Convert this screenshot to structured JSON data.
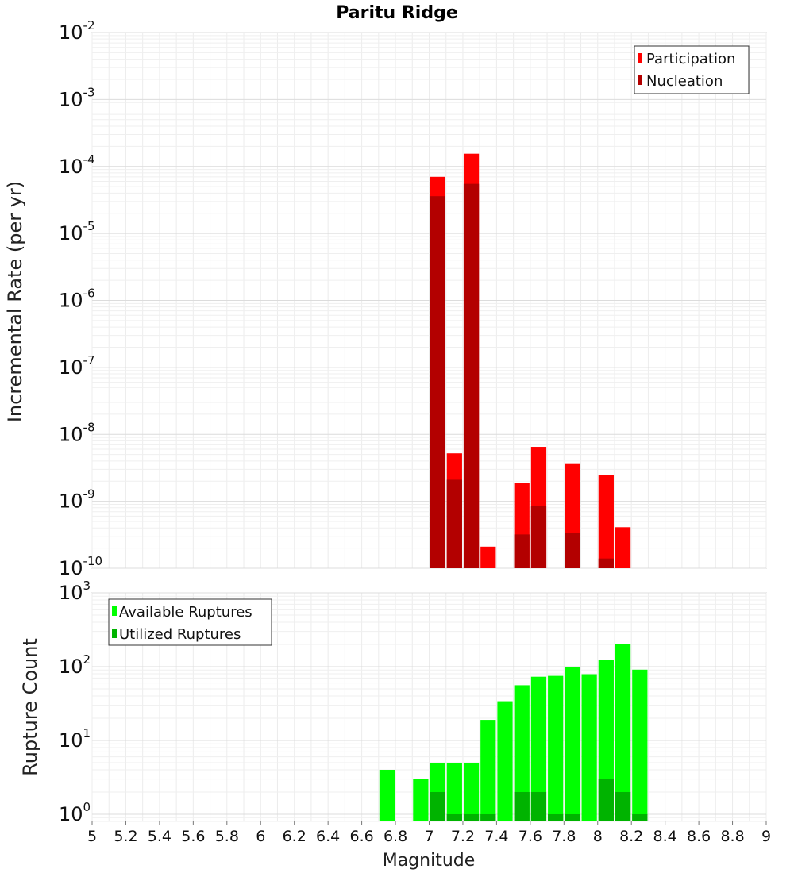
{
  "chart_data": [
    {
      "type": "bar",
      "title": "Paritu Ridge",
      "xlabel": "",
      "ylabel": "Incremental Rate (per yr)",
      "yscale": "log",
      "xlim": [
        5,
        9
      ],
      "ylim": [
        1e-10,
        0.01
      ],
      "yticks": [
        "10^-10",
        "10^-9",
        "10^-8",
        "10^-7",
        "10^-6",
        "10^-5",
        "10^-4",
        "10^-3",
        "10^-2"
      ],
      "grid": true,
      "legend_position": "top-right",
      "colors": {
        "Participation": "#ff0000",
        "Nucleation": "#b30000"
      },
      "series": [
        {
          "name": "Participation",
          "x": [
            7.05,
            7.15,
            7.25,
            7.35,
            7.55,
            7.65,
            7.85,
            8.05,
            8.15
          ],
          "values": [
            7e-05,
            5.2e-09,
            0.000155,
            2.1e-10,
            1.9e-09,
            6.5e-09,
            3.6e-09,
            2.5e-09,
            4.1e-10
          ]
        },
        {
          "name": "Nucleation",
          "x": [
            7.05,
            7.15,
            7.25,
            7.55,
            7.65,
            7.85,
            8.05
          ],
          "values": [
            3.6e-05,
            2.1e-09,
            5.5e-05,
            3.2e-10,
            8.5e-10,
            3.4e-10,
            1.4e-10
          ]
        }
      ]
    },
    {
      "type": "bar",
      "title": "",
      "xlabel": "Magnitude",
      "ylabel": "Rupture Count",
      "yscale": "log",
      "xlim": [
        5,
        9
      ],
      "ylim": [
        0.8,
        1000
      ],
      "yticks": [
        "10^0",
        "10^1",
        "10^2",
        "10^3"
      ],
      "xticks": [
        "5",
        "5.2",
        "5.4",
        "5.6",
        "5.8",
        "6",
        "6.2",
        "6.4",
        "6.6",
        "6.8",
        "7",
        "7.2",
        "7.4",
        "7.6",
        "7.8",
        "8",
        "8.2",
        "8.4",
        "8.6",
        "8.8",
        "9"
      ],
      "grid": true,
      "legend_position": "top-left",
      "colors": {
        "Available Ruptures": "#00ff00",
        "Utilized Ruptures": "#00b300"
      },
      "series": [
        {
          "name": "Available Ruptures",
          "x": [
            6.75,
            6.95,
            7.05,
            7.15,
            7.25,
            7.35,
            7.45,
            7.55,
            7.65,
            7.75,
            7.85,
            7.95,
            8.05,
            8.15,
            8.25
          ],
          "values": [
            4,
            3,
            5,
            5,
            5,
            19,
            34,
            56,
            73,
            75,
            99,
            79,
            124,
            200,
            91
          ]
        },
        {
          "name": "Utilized Ruptures",
          "x": [
            7.05,
            7.15,
            7.25,
            7.35,
            7.55,
            7.65,
            7.75,
            7.85,
            8.05,
            8.15,
            8.25
          ],
          "values": [
            2,
            1,
            1,
            1,
            2,
            2,
            1,
            1,
            3,
            2,
            1
          ]
        }
      ]
    }
  ]
}
